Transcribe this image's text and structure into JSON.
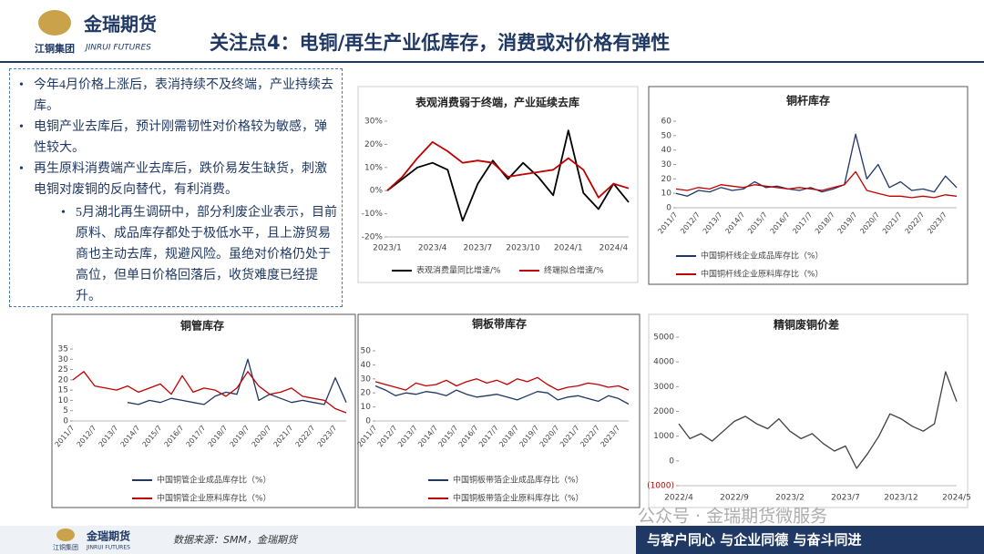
{
  "header": {
    "brand": "金瑞期货",
    "brand_en": "JINRUI FUTURES",
    "group": "江铜集团",
    "title": "关注点4：电铜/再生产业低库存，消费或对价格有弹性"
  },
  "bullets": [
    {
      "text": "今年4月价格上涨后，表消持续不及终端，产业持续去库。",
      "level": 1
    },
    {
      "text": "电铜产业去库后，预计刚需韧性对价格较为敏感，弹性较大。",
      "level": 1
    },
    {
      "text": "再生原料消费端产业去库后，跌价易发生缺货，刺激电铜对废铜的反向替代，有利消费。",
      "level": 1
    },
    {
      "text": "5月湖北再生调研中，部分利废企业表示，目前原料、成品库存都处于极低水平，且上游贸易商也主动去库，规避风险。虽绝对价格仍处于高位，但单日价格回落后，收货难度已经提升。",
      "level": 2
    }
  ],
  "footer": {
    "source": "数据来源：SMM，金瑞期货",
    "slogan": "与客户同心 与企业同德 与奋斗同进",
    "watermark": "公众号 · 金瑞期货微服务",
    "brand": "金瑞期货",
    "brand_en": "JINRUI FUTURES",
    "group": "江铜集团"
  },
  "chart_data": [
    {
      "type": "line",
      "title": "表观消费弱于终端，产业延续去库",
      "categories": [
        "2023/1",
        null,
        null,
        "2023/4",
        null,
        null,
        "2023/7",
        null,
        null,
        "2023/10",
        null,
        null,
        "2024/1",
        null,
        null,
        "2024/4",
        null
      ],
      "series": [
        {
          "name": "表观消费量同比增速/%",
          "color": "#000000",
          "values": [
            0,
            5,
            10,
            12,
            9,
            -13,
            3,
            13,
            5,
            12,
            6,
            -2,
            26,
            -1,
            -8,
            3,
            -5
          ]
        },
        {
          "name": "终端拟合增速/%",
          "color": "#c00000",
          "values": [
            0,
            6,
            14,
            21,
            17,
            12,
            13,
            12,
            6,
            7,
            8,
            9,
            14,
            9,
            -3,
            3,
            1
          ]
        }
      ],
      "ylim": [
        -20,
        30
      ],
      "yticks": [
        {
          "value": -20,
          "label": "-20%"
        },
        {
          "value": -10,
          "label": "-10%"
        },
        {
          "value": 0,
          "label": "0%"
        },
        {
          "value": 10,
          "label": "10%"
        },
        {
          "value": 20,
          "label": "20%"
        },
        {
          "value": 30,
          "label": "30%"
        }
      ]
    },
    {
      "type": "line",
      "title": "铜杆库存",
      "categories": [
        "2011/7",
        null,
        "2012/7",
        null,
        "2013/7",
        null,
        "2014/7",
        null,
        "2015/7",
        null,
        "2016/7",
        null,
        "2017/7",
        null,
        "2018/7",
        null,
        "2019/7",
        null,
        "2020/7",
        null,
        "2021/7",
        null,
        "2022/7",
        null,
        "2023/7",
        null
      ],
      "series": [
        {
          "name": "中国铜杆线企业成品库存比（%）",
          "color": "#1f3864",
          "values": [
            10,
            8,
            12,
            11,
            14,
            12,
            13,
            18,
            14,
            15,
            13,
            12,
            14,
            11,
            13,
            16,
            51,
            20,
            30,
            14,
            18,
            12,
            13,
            11,
            22,
            14
          ]
        },
        {
          "name": "中国铜杆线企业原料库存比（%）",
          "color": "#c00000",
          "values": [
            13,
            12,
            14,
            13,
            16,
            15,
            14,
            16,
            15,
            14,
            13,
            14,
            13,
            12,
            14,
            16,
            25,
            12,
            10,
            8,
            8,
            7,
            8,
            7,
            9,
            8
          ]
        }
      ],
      "ylim": [
        0,
        60
      ],
      "yticks": [
        0,
        10,
        20,
        30,
        40,
        50,
        60
      ]
    },
    {
      "type": "line",
      "title": "铜管库存",
      "categories": [
        "2011/7",
        null,
        "2012/7",
        null,
        "2013/7",
        null,
        "2014/7",
        null,
        "2015/7",
        null,
        "2016/7",
        null,
        "2017/7",
        null,
        "2018/7",
        null,
        "2019/7",
        null,
        "2020/7",
        null,
        "2021/7",
        null,
        "2022/7",
        null,
        "2023/7",
        null
      ],
      "series": [
        {
          "name": "中国铜管企业成品库存比（%）",
          "color": "#1f3864",
          "values": [
            null,
            null,
            null,
            null,
            null,
            9,
            8,
            10,
            9,
            11,
            10,
            9,
            8,
            12,
            14,
            13,
            30,
            10,
            13,
            11,
            9,
            10,
            9,
            8,
            21,
            9
          ]
        },
        {
          "name": "中国铜管企业原料库存比（%）",
          "color": "#c00000",
          "values": [
            20,
            24,
            17,
            16,
            15,
            17,
            14,
            16,
            18,
            13,
            22,
            14,
            16,
            15,
            12,
            16,
            24,
            17,
            13,
            14,
            16,
            12,
            11,
            10,
            6,
            4
          ]
        }
      ],
      "ylim": [
        0,
        35
      ],
      "yticks": [
        0,
        5,
        10,
        15,
        20,
        25,
        30,
        35
      ]
    },
    {
      "type": "line",
      "title": "铜板带库存",
      "categories": [
        "2011/7",
        null,
        "2012/7",
        null,
        "2013/7",
        null,
        "2014/7",
        null,
        "2015/7",
        null,
        "2016/7",
        null,
        "2017/7",
        null,
        "2018/7",
        null,
        "2019/7",
        null,
        "2020/7",
        null,
        "2021/7",
        null,
        "2022/7",
        null,
        "2023/7",
        null
      ],
      "series": [
        {
          "name": "中国铜板带箔企业成品库存比（%）",
          "color": "#1f3864",
          "values": [
            25,
            22,
            18,
            20,
            19,
            21,
            20,
            18,
            22,
            19,
            17,
            18,
            19,
            17,
            15,
            18,
            21,
            20,
            15,
            17,
            18,
            16,
            14,
            18,
            16,
            12
          ]
        },
        {
          "name": "中国铜板带箔企业原料库存比（%）",
          "color": "#c00000",
          "values": [
            28,
            26,
            24,
            22,
            27,
            25,
            26,
            29,
            25,
            28,
            30,
            27,
            29,
            26,
            30,
            28,
            31,
            26,
            22,
            24,
            25,
            27,
            26,
            24,
            25,
            22
          ]
        }
      ],
      "ylim": [
        0,
        50
      ],
      "yticks": [
        0,
        10,
        20,
        30,
        40,
        50
      ]
    },
    {
      "type": "line",
      "title": "精铜废铜价差",
      "categories": [
        "2022/4",
        null,
        null,
        null,
        null,
        "2022/9",
        null,
        null,
        null,
        null,
        "2023/2",
        null,
        null,
        null,
        null,
        "2023/7",
        null,
        null,
        null,
        null,
        "2023/12",
        null,
        null,
        null,
        null,
        "2024/5"
      ],
      "series": [
        {
          "name": "精铜废铜价差",
          "color": "#404040",
          "values": [
            1500,
            900,
            1100,
            800,
            1200,
            1600,
            1800,
            1500,
            1300,
            1700,
            1200,
            900,
            1100,
            700,
            400,
            600,
            -300,
            300,
            1000,
            1900,
            1700,
            1400,
            1200,
            1500,
            3600,
            2400
          ]
        }
      ],
      "ylim": [
        -1000,
        5000
      ],
      "yticks": [
        {
          "value": -1000,
          "label": "(1000)"
        },
        0,
        1000,
        2000,
        3000,
        4000,
        5000
      ]
    }
  ]
}
